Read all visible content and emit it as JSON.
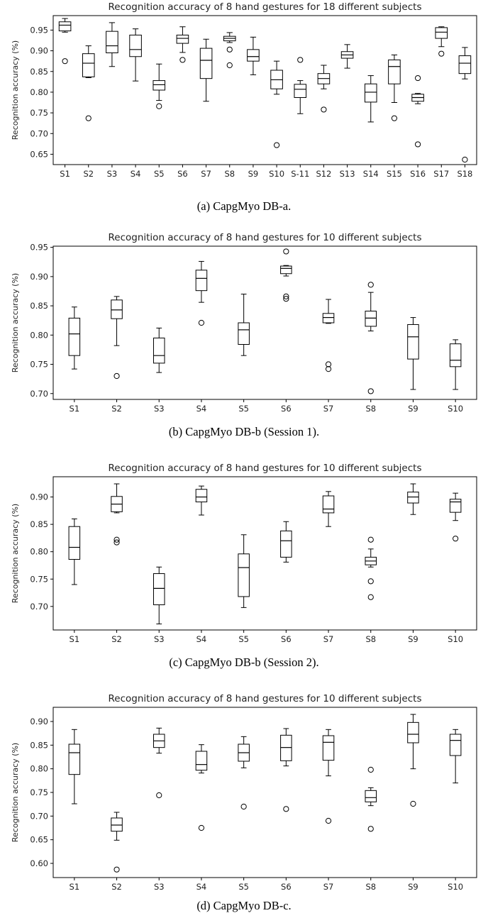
{
  "chart_data": [
    {
      "type": "box",
      "title": "Recognition accuracy of 8 hand gestures for 18 different subjects",
      "ylabel": "Recognition accuracy (%)",
      "xlabel": "",
      "ylim": [
        0.625,
        0.985
      ],
      "yticks": [
        "0.65",
        "0.70",
        "0.75",
        "0.80",
        "0.85",
        "0.90",
        "0.95"
      ],
      "grid": false,
      "caption": "(a) CapgMyo DB-a.",
      "categories": [
        "S1",
        "S2",
        "S3",
        "S4",
        "S5",
        "S6",
        "S7",
        "S8",
        "S9",
        "S10",
        "S-11",
        "S12",
        "S13",
        "S14",
        "S15",
        "S16",
        "S17",
        "S18"
      ],
      "boxes": [
        {
          "whislo": 0.945,
          "q1": 0.948,
          "med": 0.962,
          "q3": 0.97,
          "whishi": 0.978,
          "fliers": [
            0.875
          ]
        },
        {
          "whislo": 0.835,
          "q1": 0.837,
          "med": 0.87,
          "q3": 0.893,
          "whishi": 0.912,
          "fliers": [
            0.737
          ]
        },
        {
          "whislo": 0.862,
          "q1": 0.895,
          "med": 0.912,
          "q3": 0.947,
          "whishi": 0.968,
          "fliers": []
        },
        {
          "whislo": 0.827,
          "q1": 0.886,
          "med": 0.903,
          "q3": 0.938,
          "whishi": 0.953,
          "fliers": []
        },
        {
          "whislo": 0.78,
          "q1": 0.805,
          "med": 0.818,
          "q3": 0.828,
          "whishi": 0.868,
          "fliers": [
            0.766
          ]
        },
        {
          "whislo": 0.896,
          "q1": 0.918,
          "med": 0.93,
          "q3": 0.938,
          "whishi": 0.958,
          "fliers": [
            0.878
          ]
        },
        {
          "whislo": 0.778,
          "q1": 0.833,
          "med": 0.877,
          "q3": 0.906,
          "whishi": 0.928,
          "fliers": []
        },
        {
          "whislo": 0.92,
          "q1": 0.924,
          "med": 0.93,
          "q3": 0.935,
          "whishi": 0.944,
          "fliers": [
            0.903,
            0.865
          ]
        },
        {
          "whislo": 0.842,
          "q1": 0.875,
          "med": 0.886,
          "q3": 0.903,
          "whishi": 0.933,
          "fliers": []
        },
        {
          "whislo": 0.795,
          "q1": 0.808,
          "med": 0.83,
          "q3": 0.853,
          "whishi": 0.875,
          "fliers": [
            0.672
          ]
        },
        {
          "whislo": 0.748,
          "q1": 0.787,
          "med": 0.807,
          "q3": 0.819,
          "whishi": 0.828,
          "fliers": [
            0.878
          ]
        },
        {
          "whislo": 0.808,
          "q1": 0.82,
          "med": 0.833,
          "q3": 0.845,
          "whishi": 0.865,
          "fliers": [
            0.758
          ]
        },
        {
          "whislo": 0.858,
          "q1": 0.882,
          "med": 0.89,
          "q3": 0.898,
          "whishi": 0.915,
          "fliers": []
        },
        {
          "whislo": 0.728,
          "q1": 0.776,
          "med": 0.8,
          "q3": 0.82,
          "whishi": 0.84,
          "fliers": []
        },
        {
          "whislo": 0.775,
          "q1": 0.82,
          "med": 0.862,
          "q3": 0.878,
          "whishi": 0.89,
          "fliers": [
            0.737
          ]
        },
        {
          "whislo": 0.772,
          "q1": 0.778,
          "med": 0.787,
          "q3": 0.795,
          "whishi": 0.797,
          "fliers": [
            0.834,
            0.674
          ]
        },
        {
          "whislo": 0.91,
          "q1": 0.93,
          "med": 0.945,
          "q3": 0.956,
          "whishi": 0.958,
          "fliers": [
            0.893
          ]
        },
        {
          "whislo": 0.832,
          "q1": 0.845,
          "med": 0.87,
          "q3": 0.888,
          "whishi": 0.908,
          "fliers": [
            0.637
          ]
        }
      ]
    },
    {
      "type": "box",
      "title": "Recognition accuracy of 8 hand gestures for 10 different subjects",
      "ylabel": "Recognition accuracy (%)",
      "xlabel": "",
      "ylim": [
        0.69,
        0.952
      ],
      "yticks": [
        "0.70",
        "0.75",
        "0.80",
        "0.85",
        "0.90",
        "0.95"
      ],
      "grid": false,
      "caption": "(b) CapgMyo DB-b (Session 1).",
      "categories": [
        "S1",
        "S2",
        "S3",
        "S4",
        "S5",
        "S6",
        "S7",
        "S8",
        "S9",
        "S10"
      ],
      "boxes": [
        {
          "whislo": 0.742,
          "q1": 0.765,
          "med": 0.802,
          "q3": 0.829,
          "whishi": 0.848,
          "fliers": []
        },
        {
          "whislo": 0.782,
          "q1": 0.828,
          "med": 0.843,
          "q3": 0.86,
          "whishi": 0.866,
          "fliers": [
            0.73
          ]
        },
        {
          "whislo": 0.736,
          "q1": 0.752,
          "med": 0.765,
          "q3": 0.795,
          "whishi": 0.812,
          "fliers": []
        },
        {
          "whislo": 0.856,
          "q1": 0.876,
          "med": 0.897,
          "q3": 0.911,
          "whishi": 0.926,
          "fliers": [
            0.821
          ]
        },
        {
          "whislo": 0.765,
          "q1": 0.784,
          "med": 0.809,
          "q3": 0.821,
          "whishi": 0.87,
          "fliers": []
        },
        {
          "whislo": 0.901,
          "q1": 0.905,
          "med": 0.914,
          "q3": 0.918,
          "whishi": 0.919,
          "fliers": [
            0.943,
            0.866,
            0.862
          ]
        },
        {
          "whislo": 0.82,
          "q1": 0.821,
          "med": 0.83,
          "q3": 0.837,
          "whishi": 0.861,
          "fliers": [
            0.75,
            0.742
          ]
        },
        {
          "whislo": 0.807,
          "q1": 0.815,
          "med": 0.829,
          "q3": 0.841,
          "whishi": 0.873,
          "fliers": [
            0.886,
            0.704
          ]
        },
        {
          "whislo": 0.707,
          "q1": 0.759,
          "med": 0.797,
          "q3": 0.818,
          "whishi": 0.83,
          "fliers": []
        },
        {
          "whislo": 0.707,
          "q1": 0.746,
          "med": 0.757,
          "q3": 0.785,
          "whishi": 0.792,
          "fliers": []
        }
      ]
    },
    {
      "type": "box",
      "title": "Recognition accuracy of 8 hand gestures for 10 different subjects",
      "ylabel": "Recognition accuracy (%)",
      "xlabel": "",
      "ylim": [
        0.657,
        0.937
      ],
      "yticks": [
        "0.70",
        "0.75",
        "0.80",
        "0.85",
        "0.90"
      ],
      "grid": false,
      "caption": "(c) CapgMyo DB-b (Session 2).",
      "categories": [
        "S1",
        "S2",
        "S3",
        "S4",
        "S5",
        "S6",
        "S7",
        "S8",
        "S9",
        "S10"
      ],
      "boxes": [
        {
          "whislo": 0.74,
          "q1": 0.786,
          "med": 0.808,
          "q3": 0.846,
          "whishi": 0.86,
          "fliers": []
        },
        {
          "whislo": 0.871,
          "q1": 0.873,
          "med": 0.887,
          "q3": 0.901,
          "whishi": 0.924,
          "fliers": [
            0.822,
            0.817
          ]
        },
        {
          "whislo": 0.668,
          "q1": 0.703,
          "med": 0.733,
          "q3": 0.76,
          "whishi": 0.772,
          "fliers": []
        },
        {
          "whislo": 0.867,
          "q1": 0.891,
          "med": 0.9,
          "q3": 0.914,
          "whishi": 0.92,
          "fliers": []
        },
        {
          "whislo": 0.698,
          "q1": 0.718,
          "med": 0.771,
          "q3": 0.796,
          "whishi": 0.831,
          "fliers": []
        },
        {
          "whislo": 0.781,
          "q1": 0.79,
          "med": 0.82,
          "q3": 0.838,
          "whishi": 0.855,
          "fliers": []
        },
        {
          "whislo": 0.846,
          "q1": 0.871,
          "med": 0.878,
          "q3": 0.902,
          "whishi": 0.91,
          "fliers": []
        },
        {
          "whislo": 0.772,
          "q1": 0.776,
          "med": 0.783,
          "q3": 0.79,
          "whishi": 0.805,
          "fliers": [
            0.822,
            0.746,
            0.717
          ]
        },
        {
          "whislo": 0.868,
          "q1": 0.889,
          "med": 0.9,
          "q3": 0.909,
          "whishi": 0.924,
          "fliers": []
        },
        {
          "whislo": 0.857,
          "q1": 0.872,
          "med": 0.891,
          "q3": 0.896,
          "whishi": 0.907,
          "fliers": [
            0.824
          ]
        }
      ]
    },
    {
      "type": "box",
      "title": "Recognition accuracy of 8 hand gestures for 10 different subjects",
      "ylabel": "Recognition accuracy (%)",
      "xlabel": "",
      "ylim": [
        0.57,
        0.93
      ],
      "yticks": [
        "0.60",
        "0.65",
        "0.70",
        "0.75",
        "0.80",
        "0.85",
        "0.90"
      ],
      "grid": false,
      "caption": "(d) CapgMyo DB-c.",
      "categories": [
        "S1",
        "S2",
        "S3",
        "S4",
        "S5",
        "S6",
        "S7",
        "S8",
        "S9",
        "S10"
      ],
      "boxes": [
        {
          "whislo": 0.726,
          "q1": 0.788,
          "med": 0.834,
          "q3": 0.852,
          "whishi": 0.883,
          "fliers": []
        },
        {
          "whislo": 0.649,
          "q1": 0.668,
          "med": 0.681,
          "q3": 0.696,
          "whishi": 0.708,
          "fliers": [
            0.587
          ]
        },
        {
          "whislo": 0.833,
          "q1": 0.845,
          "med": 0.859,
          "q3": 0.873,
          "whishi": 0.886,
          "fliers": [
            0.744
          ]
        },
        {
          "whislo": 0.791,
          "q1": 0.797,
          "med": 0.809,
          "q3": 0.837,
          "whishi": 0.851,
          "fliers": [
            0.675
          ]
        },
        {
          "whislo": 0.802,
          "q1": 0.816,
          "med": 0.834,
          "q3": 0.852,
          "whishi": 0.868,
          "fliers": [
            0.72
          ]
        },
        {
          "whislo": 0.806,
          "q1": 0.817,
          "med": 0.845,
          "q3": 0.871,
          "whishi": 0.885,
          "fliers": [
            0.715
          ]
        },
        {
          "whislo": 0.785,
          "q1": 0.818,
          "med": 0.856,
          "q3": 0.87,
          "whishi": 0.883,
          "fliers": [
            0.69
          ]
        },
        {
          "whislo": 0.722,
          "q1": 0.73,
          "med": 0.739,
          "q3": 0.754,
          "whishi": 0.76,
          "fliers": [
            0.798,
            0.673
          ]
        },
        {
          "whislo": 0.8,
          "q1": 0.855,
          "med": 0.873,
          "q3": 0.898,
          "whishi": 0.915,
          "fliers": [
            0.726
          ]
        },
        {
          "whislo": 0.77,
          "q1": 0.828,
          "med": 0.86,
          "q3": 0.873,
          "whishi": 0.883,
          "fliers": []
        }
      ]
    }
  ]
}
